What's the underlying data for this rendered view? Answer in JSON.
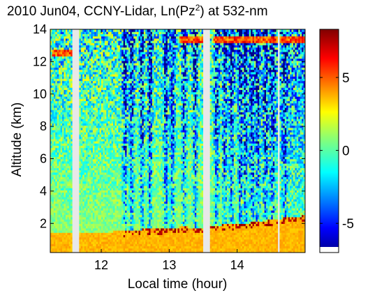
{
  "chart_data": {
    "type": "heatmap",
    "title": "2010 Jun04, CCNY-Lidar, Ln(Pz",
    "title_superscript": "2",
    "title_suffix": ") at 532-nm",
    "xlabel": "Local time (hour)",
    "ylabel": "Altitude (km)",
    "xlim": [
      11.25,
      15.0
    ],
    "ylim": [
      0.2,
      14.0
    ],
    "x_ticks": [
      12,
      13,
      14
    ],
    "y_ticks": [
      2,
      4,
      6,
      8,
      10,
      12,
      14
    ],
    "colorbar": {
      "range": [
        -7,
        8.3
      ],
      "ticks": [
        -5,
        0,
        5
      ],
      "colormap": "jet"
    },
    "data_gaps_hours": [
      [
        11.58,
        11.67
      ],
      [
        13.5,
        13.6
      ],
      [
        14.6,
        14.63
      ]
    ],
    "boundary_layer_top_km": [
      {
        "x": 11.3,
        "y": 1.5
      },
      {
        "x": 11.7,
        "y": 1.4
      },
      {
        "x": 12.0,
        "y": 1.45
      },
      {
        "x": 12.4,
        "y": 1.6
      },
      {
        "x": 12.8,
        "y": 1.7
      },
      {
        "x": 13.2,
        "y": 1.8
      },
      {
        "x": 13.45,
        "y": 1.75
      },
      {
        "x": 13.7,
        "y": 1.9
      },
      {
        "x": 14.0,
        "y": 2.0
      },
      {
        "x": 14.3,
        "y": 2.1
      },
      {
        "x": 14.6,
        "y": 2.3
      },
      {
        "x": 15.0,
        "y": 2.5
      }
    ],
    "cloud_layers": [
      {
        "x_start": 11.27,
        "x_end": 11.6,
        "y_km": 12.55
      },
      {
        "x_start": 13.15,
        "x_end": 13.5,
        "y_km": 13.4
      },
      {
        "x_start": 13.65,
        "x_end": 15.0,
        "y_km": 13.35
      }
    ]
  },
  "colors": {
    "jet_stops": [
      "#00008f",
      "#0000ff",
      "#00ffff",
      "#ffff00",
      "#ff0000",
      "#800000"
    ],
    "gap": "#e8e8e8"
  }
}
